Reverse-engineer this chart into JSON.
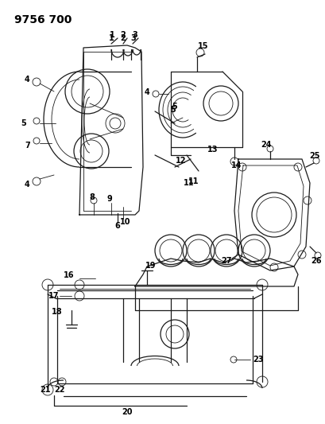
{
  "title": "9756 700",
  "background_color": "#ffffff",
  "line_color": "#1a1a1a",
  "label_color": "#000000",
  "title_fontsize": 10,
  "label_fontsize": 7,
  "fig_width": 4.1,
  "fig_height": 5.33,
  "dpi": 100
}
